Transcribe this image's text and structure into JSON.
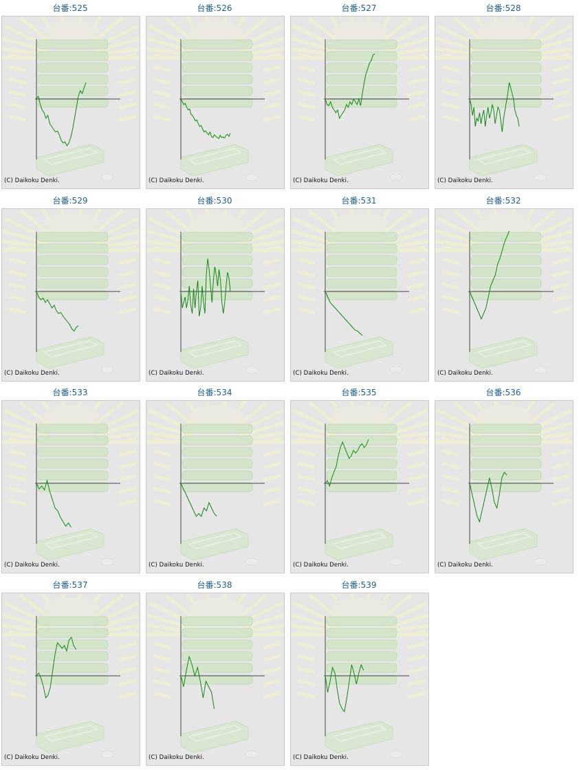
{
  "copyright": "(C) Daikoku Denki.",
  "colors": {
    "line": "#118811",
    "axis": "#444444",
    "title": "#1f5f8f",
    "panel": "#e6e6e6"
  },
  "chart_data": [
    {
      "type": "line",
      "title": "台番:525",
      "values": [
        0,
        0.05,
        -0.1,
        -0.2,
        -0.25,
        -0.35,
        -0.3,
        -0.45,
        -0.5,
        -0.55,
        -0.6,
        -0.58,
        -0.65,
        -0.75,
        -0.8,
        -0.78,
        -0.85,
        -0.8,
        -0.7,
        -0.55,
        -0.35,
        -0.15,
        0.05,
        0.15,
        0.1,
        0.2,
        0.3
      ]
    },
    {
      "type": "line",
      "title": "台番:526",
      "values": [
        0,
        -0.05,
        -0.1,
        -0.08,
        -0.15,
        -0.2,
        -0.18,
        -0.28,
        -0.3,
        -0.35,
        -0.4,
        -0.38,
        -0.45,
        -0.5,
        -0.48,
        -0.55,
        -0.6,
        -0.58,
        -0.62,
        -0.65,
        -0.6,
        -0.68,
        -0.7,
        -0.65,
        -0.68,
        -0.7,
        -0.72,
        -0.66,
        -0.7,
        -0.69,
        -0.71,
        -0.66,
        -0.64,
        -0.68,
        -0.62
      ]
    },
    {
      "type": "line",
      "title": "台番:527",
      "values": [
        0,
        -0.1,
        -0.12,
        -0.05,
        -0.15,
        -0.2,
        -0.25,
        -0.2,
        -0.35,
        -0.3,
        -0.25,
        -0.2,
        -0.1,
        -0.15,
        -0.05,
        -0.1,
        0,
        -0.05,
        -0.1,
        0,
        -0.12,
        0.1,
        0.3,
        0.45,
        0.55,
        0.65,
        0.7,
        0.8,
        0.82
      ]
    },
    {
      "type": "line",
      "title": "台番:528",
      "values": [
        0,
        -0.1,
        -0.3,
        -0.15,
        -0.5,
        -0.35,
        -0.4,
        -0.25,
        -0.45,
        -0.3,
        -0.2,
        -0.5,
        -0.3,
        -0.15,
        -0.35,
        -0.25,
        -0.1,
        -0.2,
        -0.45,
        -0.3,
        -0.15,
        -0.2,
        -0.4,
        -0.6,
        -0.35,
        -0.2,
        -0.05,
        0.1,
        0.3,
        0.2,
        0.1,
        0,
        -0.2,
        -0.3,
        -0.35,
        -0.5
      ]
    },
    {
      "type": "line",
      "title": "台番:529",
      "values": [
        0,
        -0.1,
        -0.15,
        -0.12,
        -0.2,
        -0.15,
        -0.22,
        -0.3,
        -0.25,
        -0.35,
        -0.4,
        -0.38,
        -0.45,
        -0.5,
        -0.55,
        -0.6,
        -0.68,
        -0.72,
        -0.65,
        -0.62
      ]
    },
    {
      "type": "line",
      "title": "台番:530",
      "values": [
        0,
        -0.3,
        -0.2,
        -0.1,
        -0.3,
        -0.15,
        0.1,
        -0.25,
        -0.4,
        0.05,
        -0.3,
        0,
        0.2,
        -0.45,
        -0.3,
        0.1,
        -0.2,
        -0.4,
        0.3,
        0.6,
        0.4,
        0.1,
        -0.2,
        0.2,
        0.45,
        0.3,
        0.1,
        0.4,
        0.2,
        -0.2,
        -0.4,
        -0.2,
        0.1,
        0.35,
        0.25,
        0
      ]
    },
    {
      "type": "line",
      "title": "台番:531",
      "values": [
        0,
        -0.1,
        -0.2,
        -0.25,
        -0.3,
        -0.35,
        -0.4,
        -0.45,
        -0.5,
        -0.55,
        -0.6,
        -0.65,
        -0.7,
        -0.72,
        -0.76,
        -0.8
      ]
    },
    {
      "type": "line",
      "title": "台番:532",
      "values": [
        0,
        -0.1,
        -0.2,
        -0.3,
        -0.4,
        -0.5,
        -0.4,
        -0.3,
        -0.1,
        0.1,
        0.2,
        0.3,
        0.5,
        0.6,
        0.75,
        0.9,
        1.0,
        1.1
      ]
    },
    {
      "type": "line",
      "title": "台番:533",
      "values": [
        0,
        -0.1,
        -0.05,
        -0.12,
        0.05,
        -0.15,
        -0.3,
        -0.45,
        -0.5,
        -0.62,
        -0.7,
        -0.78,
        -0.72,
        -0.8
      ]
    },
    {
      "type": "line",
      "title": "台番:534",
      "values": [
        0,
        -0.1,
        -0.2,
        -0.3,
        -0.4,
        -0.5,
        -0.6,
        -0.55,
        -0.6,
        -0.45,
        -0.5,
        -0.35,
        -0.45,
        -0.55,
        -0.6
      ]
    },
    {
      "type": "line",
      "title": "台番:535",
      "values": [
        0,
        0.05,
        -0.05,
        0.1,
        0.2,
        0.3,
        0.5,
        0.65,
        0.75,
        0.65,
        0.55,
        0.45,
        0.5,
        0.6,
        0.55,
        0.6,
        0.68,
        0.72,
        0.65,
        0.7,
        0.8
      ]
    },
    {
      "type": "line",
      "title": "台番:536",
      "values": [
        0,
        -0.2,
        -0.4,
        -0.6,
        -0.7,
        -0.5,
        -0.3,
        -0.1,
        0.1,
        -0.1,
        -0.35,
        -0.45,
        -0.2,
        0.1,
        0.2,
        0.15
      ]
    },
    {
      "type": "line",
      "title": "台番:537",
      "values": [
        0,
        0.05,
        -0.05,
        -0.2,
        -0.4,
        -0.35,
        -0.2,
        0.1,
        0.4,
        0.6,
        0.55,
        0.5,
        0.55,
        0.45,
        0.65,
        0.7,
        0.55,
        0.48
      ]
    },
    {
      "type": "line",
      "title": "台番:538",
      "values": [
        0,
        -0.2,
        0.1,
        0.35,
        0.2,
        0,
        0.15,
        -0.1,
        -0.4,
        -0.1,
        -0.2,
        -0.3,
        -0.6
      ]
    },
    {
      "type": "line",
      "title": "台番:539",
      "values": [
        0,
        -0.3,
        -0.1,
        0.15,
        0.05,
        -0.25,
        -0.5,
        -0.6,
        -0.65,
        -0.4,
        -0.1,
        0.2,
        0.05,
        -0.15,
        0.05,
        0.2,
        0.1
      ]
    }
  ]
}
